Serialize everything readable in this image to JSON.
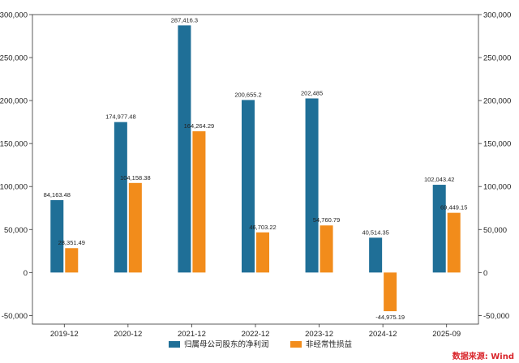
{
  "chart_data": {
    "type": "bar",
    "categories": [
      "2019-12",
      "2020-12",
      "2021-12",
      "2022-12",
      "2023-12",
      "2024-12",
      "2025-09"
    ],
    "series": [
      {
        "name": "归属母公司股东的净利润",
        "color": "#1f6f97",
        "values": [
          84163.48,
          174977.48,
          287416.3,
          200655.2,
          202485,
          40514.35,
          102043.42
        ],
        "labels": [
          "84,163.48",
          "174,977.48",
          "287,416.3",
          "200,655.2",
          "202,485",
          "40,514.35",
          "102,043.42"
        ]
      },
      {
        "name": "非经常性损益",
        "color": "#f28c1b",
        "values": [
          28351.49,
          104158.38,
          164264.29,
          46703.22,
          54760.79,
          -44975.19,
          69449.15
        ],
        "labels": [
          "28,351.49",
          "104,158.38",
          "164,264.29",
          "46,703.22",
          "54,760.79",
          "-44,975.19",
          "69,449.15"
        ]
      }
    ],
    "ylim": [
      -60000,
      300000
    ],
    "yticks": [
      -50000,
      0,
      50000,
      100000,
      150000,
      200000,
      250000,
      300000
    ],
    "ytick_labels": [
      "-50,000",
      "0",
      "50,000",
      "100,000",
      "150,000",
      "200,000",
      "250,000",
      "300,000"
    ],
    "grid": false,
    "legend": "bottom-center",
    "title": "",
    "xlabel": "",
    "ylabel": ""
  },
  "source_note": "数据来源: Wind"
}
